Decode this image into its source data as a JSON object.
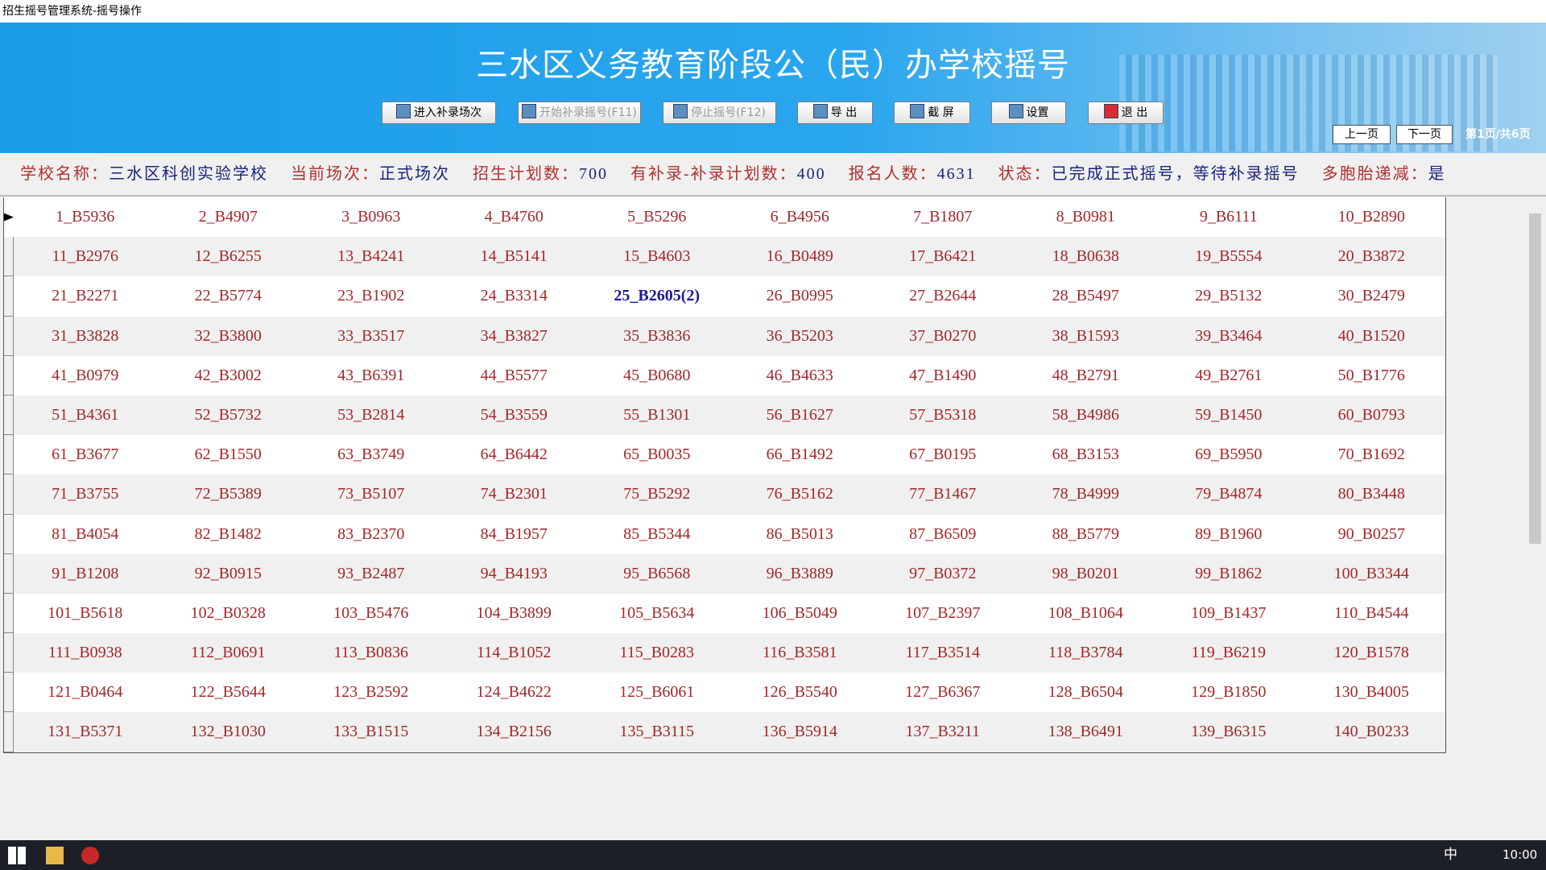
{
  "window_title": "招生摇号管理系统-摇号操作",
  "header": {
    "title": "三水区义务教育阶段公（民）办学校摇号"
  },
  "toolbar": {
    "buttons": [
      {
        "label": "进入补录场次",
        "enabled": true
      },
      {
        "label": "开始补录摇号(F11)",
        "enabled": false
      },
      {
        "label": "停止摇号(F12)",
        "enabled": false
      },
      {
        "label": "导 出",
        "enabled": true
      },
      {
        "label": "截 屏",
        "enabled": true
      },
      {
        "label": "设置",
        "enabled": true
      },
      {
        "label": "退 出",
        "enabled": true
      }
    ]
  },
  "pager": {
    "prev": "上一页",
    "next": "下一页",
    "status": "第1页/共6页"
  },
  "info": [
    {
      "label": "学校名称：",
      "value": "三水区科创实验学校"
    },
    {
      "label": "当前场次：",
      "value": "正式场次"
    },
    {
      "label": "招生计划数：",
      "value": "700"
    },
    {
      "label": "有补录-补录计划数：",
      "value": "400"
    },
    {
      "label": "报名人数：",
      "value": "4631"
    },
    {
      "label": "状态：",
      "value": "已完成正式摇号，等待补录摇号"
    },
    {
      "label": "多胞胎递减：",
      "value": "是"
    }
  ],
  "table": {
    "rows": [
      [
        "1_B5936",
        "2_B4907",
        "3_B0963",
        "4_B4760",
        "5_B5296",
        "6_B4956",
        "7_B1807",
        "8_B0981",
        "9_B6111",
        "10_B2890"
      ],
      [
        "11_B2976",
        "12_B6255",
        "13_B4241",
        "14_B5141",
        "15_B4603",
        "16_B0489",
        "17_B6421",
        "18_B0638",
        "19_B5554",
        "20_B3872"
      ],
      [
        "21_B2271",
        "22_B5774",
        "23_B1902",
        "24_B3314",
        "25_B2605(2)",
        "26_B0995",
        "27_B2644",
        "28_B5497",
        "29_B5132",
        "30_B2479"
      ],
      [
        "31_B3828",
        "32_B3800",
        "33_B3517",
        "34_B3827",
        "35_B3836",
        "36_B5203",
        "37_B0270",
        "38_B1593",
        "39_B3464",
        "40_B1520"
      ],
      [
        "41_B0979",
        "42_B3002",
        "43_B6391",
        "44_B5577",
        "45_B0680",
        "46_B4633",
        "47_B1490",
        "48_B2791",
        "49_B2761",
        "50_B1776"
      ],
      [
        "51_B4361",
        "52_B5732",
        "53_B2814",
        "54_B3559",
        "55_B1301",
        "56_B1627",
        "57_B5318",
        "58_B4986",
        "59_B1450",
        "60_B0793"
      ],
      [
        "61_B3677",
        "62_B1550",
        "63_B3749",
        "64_B6442",
        "65_B0035",
        "66_B1492",
        "67_B0195",
        "68_B3153",
        "69_B5950",
        "70_B1692"
      ],
      [
        "71_B3755",
        "72_B5389",
        "73_B5107",
        "74_B2301",
        "75_B5292",
        "76_B5162",
        "77_B1467",
        "78_B4999",
        "79_B4874",
        "80_B3448"
      ],
      [
        "81_B4054",
        "82_B1482",
        "83_B2370",
        "84_B1957",
        "85_B5344",
        "86_B5013",
        "87_B6509",
        "88_B5779",
        "89_B1960",
        "90_B0257"
      ],
      [
        "91_B1208",
        "92_B0915",
        "93_B2487",
        "94_B4193",
        "95_B6568",
        "96_B3889",
        "97_B0372",
        "98_B0201",
        "99_B1862",
        "100_B3344"
      ],
      [
        "101_B5618",
        "102_B0328",
        "103_B5476",
        "104_B3899",
        "105_B5634",
        "106_B5049",
        "107_B2397",
        "108_B1064",
        "109_B1437",
        "110_B4544"
      ],
      [
        "111_B0938",
        "112_B0691",
        "113_B0836",
        "114_B1052",
        "115_B0283",
        "116_B3581",
        "117_B3514",
        "118_B3784",
        "119_B6219",
        "120_B1578"
      ],
      [
        "121_B0464",
        "122_B5644",
        "123_B2592",
        "124_B4622",
        "125_B6061",
        "126_B5540",
        "127_B6367",
        "128_B6504",
        "129_B1850",
        "130_B4005"
      ],
      [
        "131_B5371",
        "132_B1030",
        "133_B1515",
        "134_B2156",
        "135_B3115",
        "136_B5914",
        "137_B3211",
        "138_B6491",
        "139_B6315",
        "140_B0233"
      ]
    ]
  },
  "taskbar": {
    "ime": "中",
    "clock": "10:00"
  }
}
